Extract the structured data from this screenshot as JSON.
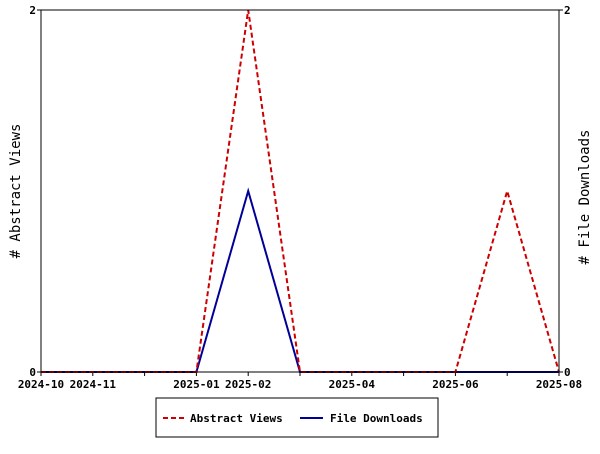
{
  "chart_data": {
    "type": "line",
    "x": [
      "2024-10",
      "2024-11",
      "2024-12",
      "2025-01",
      "2025-02",
      "2025-03",
      "2025-04",
      "2025-05",
      "2025-06",
      "2025-07",
      "2025-08"
    ],
    "x_tick_labels": [
      "2024-10",
      "2024-11",
      "2025-01",
      "2025-02",
      "2025-04",
      "2025-06",
      "2025-08"
    ],
    "series": [
      {
        "name": "Abstract Views",
        "axis": "left",
        "color": "#cc0000",
        "line_style": "dashed",
        "values": [
          0,
          0,
          0,
          0,
          2,
          0,
          0,
          0,
          0,
          1,
          0
        ]
      },
      {
        "name": "File Downloads",
        "axis": "left",
        "color": "#000099",
        "line_style": "solid",
        "values": [
          0,
          0,
          0,
          0,
          1,
          0,
          0,
          0,
          0,
          0,
          0
        ]
      }
    ],
    "ylabel": "# Abstract Views",
    "y2label": "# File Downloads",
    "ylim": [
      0,
      2
    ],
    "y2lim": [
      0,
      2
    ],
    "y_ticks": [
      "0",
      "2"
    ],
    "y2_ticks": [
      "0",
      "2"
    ],
    "grid": false,
    "legend_position": "bottom"
  }
}
